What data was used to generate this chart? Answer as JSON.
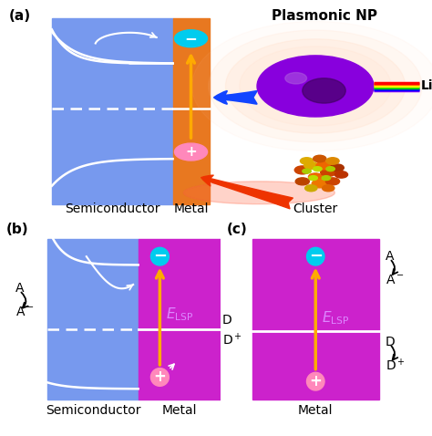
{
  "title_a": "Plasmonic NP",
  "label_light": "Light",
  "label_semiconductor": "Semiconductor",
  "label_metal": "Metal",
  "label_cluster": "Cluster",
  "color_semiconductor": "#7799EE",
  "color_metal_orange": "#E87820",
  "color_metal_purple": "#CC22CC",
  "color_np": "#8800DD",
  "color_np_dark": "#440066",
  "color_glow": "#FFAAAA",
  "color_arrow_up": "#FFAA00",
  "color_arrow_blue": "#1144FF",
  "color_arrow_red": "#EE3300",
  "color_cyan": "#00CCEE",
  "color_pink": "#FF88BB",
  "color_elsp": "#DD88FF",
  "bg_color": "#FFFFFF",
  "panel_label_fontsize": 11,
  "text_fontsize": 10,
  "elsp_fontsize": 11
}
